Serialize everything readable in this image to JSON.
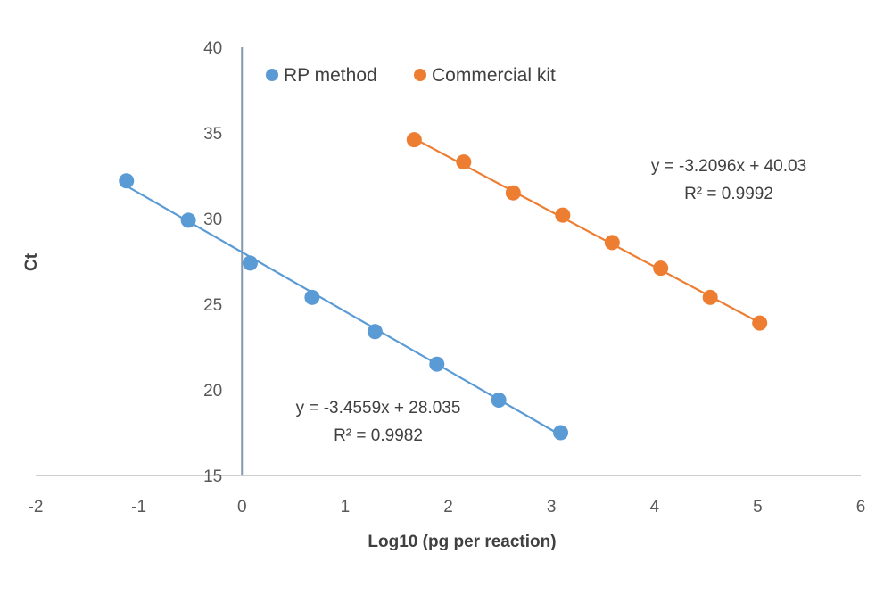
{
  "chart_data": {
    "type": "scatter",
    "title": "",
    "xlabel": "Log10 (pg per reaction)",
    "ylabel": "Ct",
    "xlim": [
      -2,
      6
    ],
    "ylim": [
      15,
      40
    ],
    "xticks": [
      "-2",
      "-1",
      "0",
      "1",
      "2",
      "3",
      "4",
      "5",
      "6"
    ],
    "yticks": [
      "15",
      "20",
      "25",
      "30",
      "35",
      "40"
    ],
    "grid": false,
    "legend_position": "top",
    "series": [
      {
        "name": "RP method",
        "color": "#5B9BD5",
        "x": [
          -1.12,
          -0.52,
          0.08,
          0.68,
          1.29,
          1.89,
          2.49,
          3.09
        ],
        "y": [
          32.2,
          29.9,
          27.4,
          25.4,
          23.4,
          21.5,
          19.4,
          17.5
        ],
        "trendline": {
          "slope": -3.4559,
          "intercept": 28.035,
          "equation": "y = -3.4559x + 28.035",
          "r2": "R² = 0.9982"
        }
      },
      {
        "name": "Commercial kit",
        "color": "#ED7D31",
        "x": [
          1.67,
          2.15,
          2.63,
          3.11,
          3.59,
          4.06,
          4.54,
          5.02
        ],
        "y": [
          34.6,
          33.3,
          31.5,
          30.2,
          28.6,
          27.1,
          25.4,
          23.9
        ],
        "trendline": {
          "slope": -3.2096,
          "intercept": 40.03,
          "equation": "y = -3.2096x + 40.03",
          "r2": "R² = 0.9992"
        }
      }
    ]
  }
}
